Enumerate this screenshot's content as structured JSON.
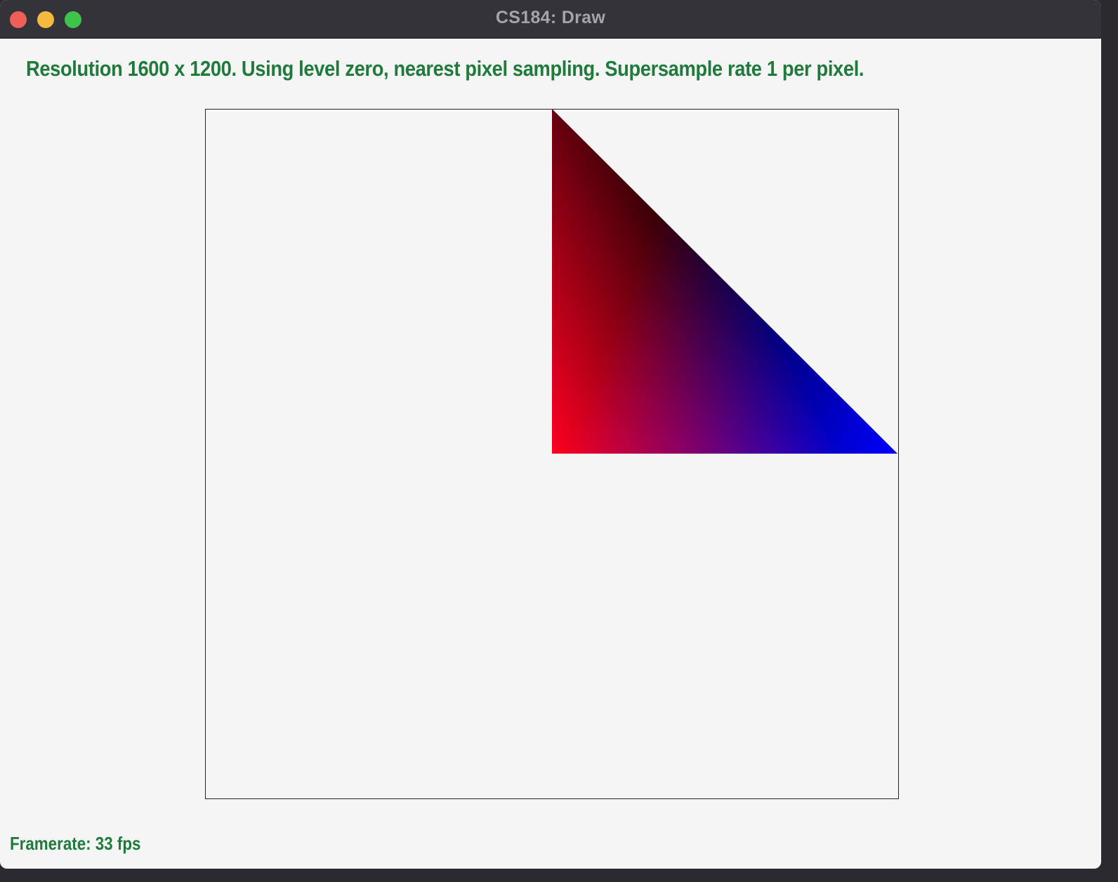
{
  "window": {
    "title": "CS184: Draw"
  },
  "status": {
    "info_text": "Resolution 1600 x 1200. Using level zero, nearest pixel sampling. Supersample rate 1 per pixel.",
    "framerate_text": "Framerate: 33 fps"
  },
  "colors": {
    "text_green": "#1f7a3c",
    "vertex_top": "#000000",
    "vertex_bottom_left": "#ff0022",
    "vertex_bottom_right": "#0000ff"
  }
}
